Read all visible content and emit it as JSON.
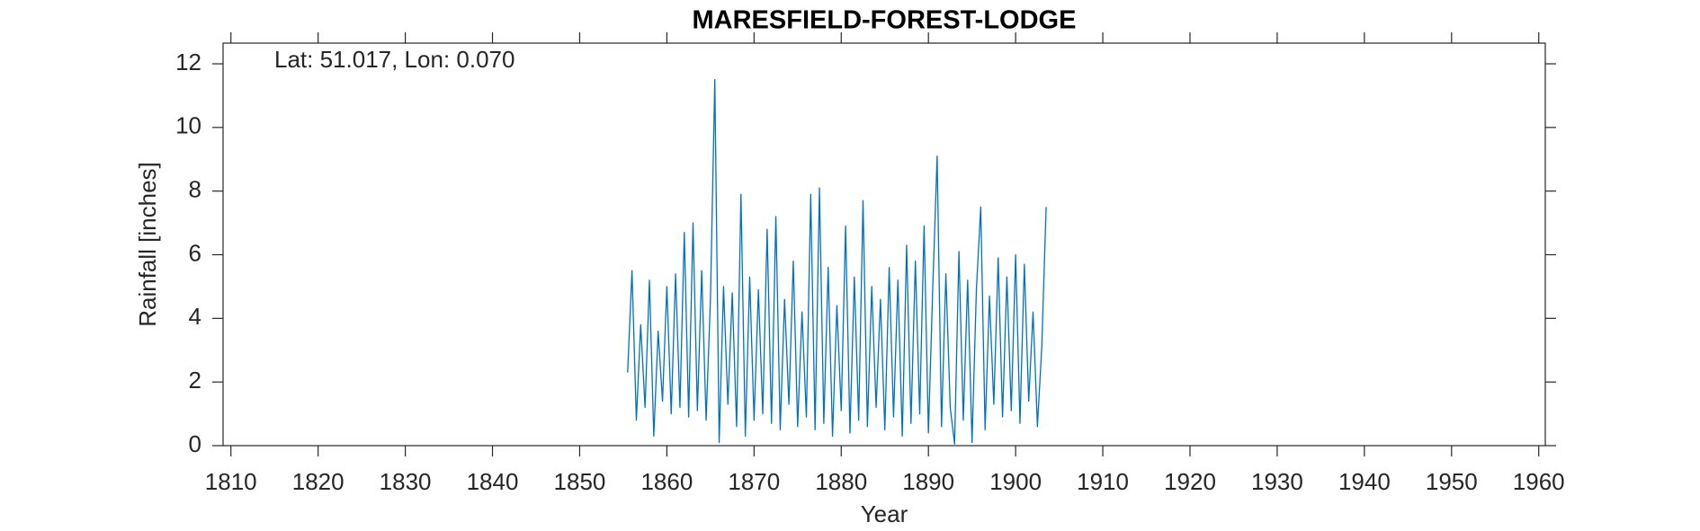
{
  "chart_data": {
    "type": "line",
    "title": "MARESFIELD-FOREST-LODGE",
    "annotation": "Lat: 51.017, Lon: 0.070",
    "x_label": "Year",
    "y_label": "Rainfall [inches]",
    "x": [
      1855.5,
      1856,
      1856.5,
      1857,
      1857.5,
      1858,
      1858.5,
      1859,
      1859.5,
      1860,
      1860.5,
      1861,
      1861.5,
      1862,
      1862.5,
      1863,
      1863.5,
      1864,
      1864.5,
      1865,
      1865.5,
      1866,
      1866.5,
      1867,
      1867.5,
      1868,
      1868.5,
      1869,
      1869.5,
      1870,
      1870.5,
      1871,
      1871.5,
      1872,
      1872.5,
      1873,
      1873.5,
      1874,
      1874.5,
      1875,
      1875.5,
      1876,
      1876.5,
      1877,
      1877.5,
      1878,
      1878.5,
      1879,
      1879.5,
      1880,
      1880.5,
      1881,
      1881.5,
      1882,
      1882.5,
      1883,
      1883.5,
      1884,
      1884.5,
      1885,
      1885.5,
      1886,
      1886.5,
      1887,
      1887.5,
      1888,
      1888.5,
      1889,
      1889.5,
      1890,
      1890.5,
      1891,
      1891.5,
      1892,
      1892.5,
      1893,
      1893.5,
      1894,
      1894.5,
      1895,
      1895.5,
      1896,
      1896.5,
      1897,
      1897.5,
      1898,
      1898.5,
      1899,
      1899.5,
      1900,
      1900.5,
      1901,
      1901.5,
      1902,
      1902.5,
      1903,
      1903.5
    ],
    "series": [
      {
        "name": "Rainfall",
        "color": "#0072bd",
        "values": [
          2.3,
          5.5,
          0.8,
          3.8,
          1.2,
          5.2,
          0.3,
          3.6,
          1.4,
          5.0,
          1.0,
          5.4,
          1.2,
          6.7,
          0.9,
          7.0,
          1.1,
          5.5,
          0.8,
          4.6,
          11.5,
          0.1,
          5.0,
          1.3,
          4.8,
          0.6,
          7.9,
          0.3,
          5.3,
          0.8,
          4.9,
          1.0,
          6.8,
          0.7,
          7.2,
          0.5,
          4.6,
          1.3,
          5.8,
          0.6,
          4.2,
          0.9,
          7.9,
          0.5,
          8.1,
          0.7,
          5.6,
          0.3,
          4.4,
          1.1,
          6.9,
          0.4,
          5.3,
          0.8,
          7.7,
          0.6,
          5.0,
          1.2,
          4.6,
          0.5,
          5.6,
          0.9,
          5.2,
          0.3,
          6.3,
          0.7,
          5.8,
          1.0,
          6.9,
          0.4,
          5.0,
          9.1,
          0.6,
          5.4,
          1.2,
          0.05,
          6.1,
          0.8,
          5.2,
          0.1,
          4.9,
          7.5,
          0.5,
          4.7,
          1.3,
          5.9,
          0.9,
          5.3,
          1.1,
          6.0,
          0.7,
          5.7,
          1.4,
          4.2,
          0.6,
          3.1,
          7.5
        ]
      }
    ],
    "xlim": [
      1809.1,
      1960.75
    ],
    "ylim": [
      0,
      12.65
    ],
    "xticks": [
      1810,
      1820,
      1830,
      1840,
      1850,
      1860,
      1870,
      1880,
      1890,
      1900,
      1910,
      1920,
      1930,
      1940,
      1950,
      1960
    ],
    "yticks": [
      0,
      2,
      4,
      6,
      8,
      10,
      12
    ],
    "grid": false
  }
}
